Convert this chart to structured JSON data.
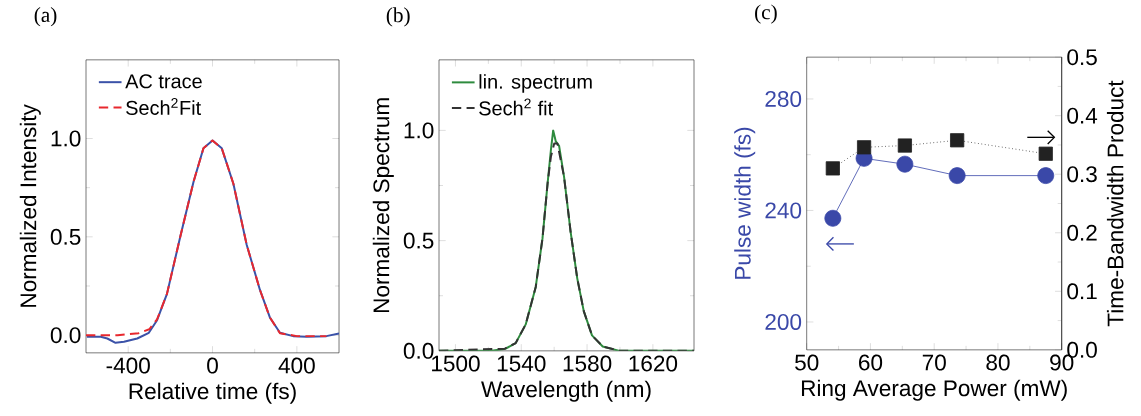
{
  "chart_data": [
    {
      "type": "line",
      "title": "(a)",
      "xlabel": "Relative time (fs)",
      "ylabel": "Normalized Intensity",
      "legend": "top left",
      "xlim": [
        -600,
        600
      ],
      "xticks": [
        -400,
        0,
        400
      ],
      "ylim": [
        -0.09,
        1.4
      ],
      "yticks": [
        {
          "value": 0,
          "label": "0.0"
        },
        {
          "value": 0.5,
          "label": "0.5"
        },
        {
          "value": 1,
          "label": "1.0"
        }
      ],
      "series": [
        {
          "name": "AC trace",
          "color": "#3b52a8",
          "line_style": "solid",
          "x": [
            -596,
            -530,
            -499,
            -460,
            -420,
            -357,
            -302,
            -263,
            -216,
            -153,
            -90,
            -43,
            0,
            44,
            99,
            162,
            225,
            272,
            320,
            383,
            446,
            540,
            600
          ],
          "values": [
            -0.008,
            -0.008,
            -0.017,
            -0.039,
            -0.034,
            -0.017,
            0.012,
            0.076,
            0.21,
            0.5,
            0.78,
            0.95,
            0.99,
            0.95,
            0.77,
            0.46,
            0.23,
            0.09,
            0.012,
            -0.005,
            -0.008,
            -0.005,
            0.008
          ]
        },
        {
          "name": "Sech$^{2}$Fit",
          "color": "#e8282e",
          "line_style": "dashed",
          "x": [
            -600,
            -450,
            -350,
            -300,
            -263,
            -216,
            -153,
            -90,
            -43,
            0,
            44,
            99,
            162,
            225,
            272,
            320,
            400,
            540
          ],
          "values": [
            0.0,
            0.0,
            0.01,
            0.03,
            0.08,
            0.21,
            0.5,
            0.78,
            0.95,
            0.99,
            0.95,
            0.77,
            0.46,
            0.23,
            0.09,
            0.01,
            -0.005,
            -0.005
          ]
        }
      ]
    },
    {
      "type": "line",
      "title": "(b)",
      "xlabel": "Wavelength (nm)",
      "ylabel": "Normalized Spectrum",
      "legend": "top left",
      "xlim": [
        1490,
        1645
      ],
      "xticks": [
        1500,
        1540,
        1580,
        1620
      ],
      "ylim": [
        0,
        1.32
      ],
      "yticks": [
        {
          "value": 0,
          "label": "0.0"
        },
        {
          "value": 0.5,
          "label": "0.5"
        },
        {
          "value": 1,
          "label": "1.0"
        }
      ],
      "series": [
        {
          "name": "lin. spectrum",
          "color": "#2e8b3e",
          "line_style": "solid",
          "x": [
            1490,
            1522,
            1530.5,
            1536.6,
            1542.7,
            1548.8,
            1552.9,
            1556,
            1558,
            1559.4,
            1561,
            1563,
            1566,
            1570,
            1574,
            1578,
            1583,
            1589.5,
            1599.7,
            1645
          ],
          "values": [
            0,
            0,
            0.01,
            0.035,
            0.12,
            0.29,
            0.51,
            0.76,
            0.91,
            1.0,
            0.95,
            0.93,
            0.79,
            0.54,
            0.33,
            0.18,
            0.07,
            0.02,
            0,
            0
          ]
        },
        {
          "name": "Sech$^{2}$ fit",
          "color": "#333333",
          "line_style": "dashed",
          "x": [
            1490,
            1530,
            1536.6,
            1542.7,
            1548.8,
            1552.9,
            1556,
            1558,
            1560,
            1562,
            1566,
            1570,
            1574,
            1578,
            1583,
            1589.5,
            1600,
            1645
          ],
          "values": [
            0,
            0.01,
            0.035,
            0.12,
            0.29,
            0.51,
            0.76,
            0.88,
            0.94,
            0.94,
            0.79,
            0.54,
            0.33,
            0.18,
            0.07,
            0.02,
            0,
            0
          ]
        }
      ]
    },
    {
      "type": "line",
      "title": "(c)",
      "xlabel": "Ring Average Power (mW)",
      "ylabel": "Pulse width (fs)",
      "y2label": "Time-Bandwidth Product",
      "x": [
        54.1,
        59.0,
        65.4,
        73.6,
        87.5
      ],
      "xlim": [
        50,
        90
      ],
      "xticks": [
        50,
        60,
        70,
        80,
        90
      ],
      "ylim": [
        190,
        295
      ],
      "yticks": [
        200,
        240,
        280
      ],
      "y2lim": [
        0,
        0.5
      ],
      "y2ticks": [
        {
          "value": 0,
          "label": "0.0"
        },
        0.1,
        0.2,
        0.3,
        0.4,
        0.5
      ],
      "series": [
        {
          "color": "#3a48a8",
          "marker": "circle",
          "line_style": "solid",
          "values": [
            237.2,
            258.7,
            256.6,
            252.5,
            252.5
          ]
        },
        {
          "color": "#222222",
          "marker": "square",
          "line_style": "dotted",
          "axis": "y2",
          "values": [
            0.31,
            0.346,
            0.349,
            0.358,
            0.335
          ]
        }
      ]
    }
  ]
}
